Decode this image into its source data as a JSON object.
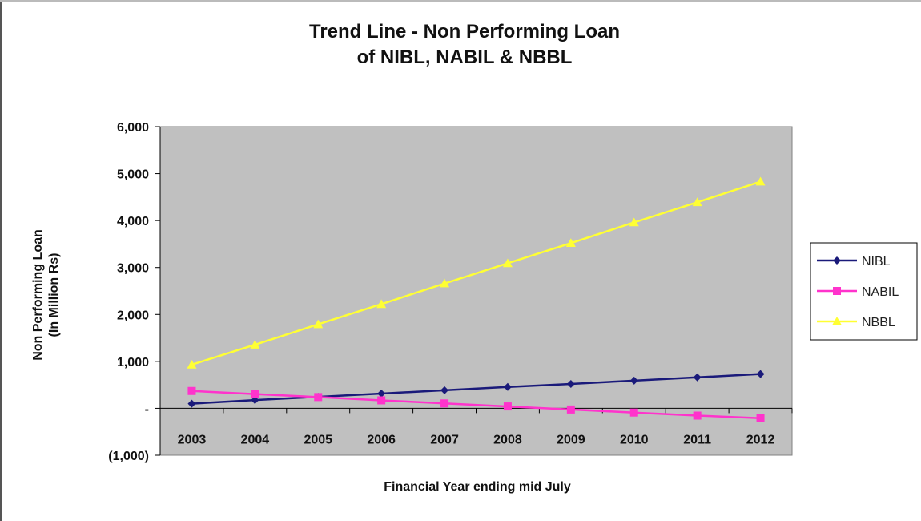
{
  "chart_data": {
    "type": "line",
    "title_line1": "Trend Line - Non Performing Loan",
    "title_line2": "of NIBL, NABIL & NBBL",
    "xlabel": "Financial Year ending mid July",
    "ylabel_line1": "Non Performing Loan",
    "ylabel_line2": "(In Million Rs)",
    "categories": [
      "2003",
      "2004",
      "2005",
      "2006",
      "2007",
      "2008",
      "2009",
      "2010",
      "2011",
      "2012"
    ],
    "ylim": [
      -1000,
      6000
    ],
    "y_ticks": [
      6000,
      5000,
      4000,
      3000,
      2000,
      1000,
      0,
      -1000
    ],
    "y_tick_labels": [
      "6,000",
      "5,000",
      "4,000",
      "3,000",
      "2,000",
      "1,000",
      "-",
      "(1,000)"
    ],
    "grid": false,
    "plot_background": "#c0c0c0",
    "legend_position": "right",
    "series": [
      {
        "name": "NIBL",
        "color": "#1a1a7a",
        "marker": "diamond",
        "values": [
          100,
          175,
          245,
          315,
          385,
          455,
          520,
          590,
          660,
          730
        ]
      },
      {
        "name": "NABIL",
        "color": "#ff33cc",
        "marker": "square",
        "values": [
          370,
          305,
          240,
          170,
          105,
          40,
          -25,
          -90,
          -155,
          -210
        ]
      },
      {
        "name": "NBBL",
        "color": "#ffff33",
        "marker": "triangle",
        "values": [
          930,
          1355,
          1790,
          2220,
          2660,
          3090,
          3520,
          3960,
          4390,
          4830
        ]
      }
    ]
  }
}
